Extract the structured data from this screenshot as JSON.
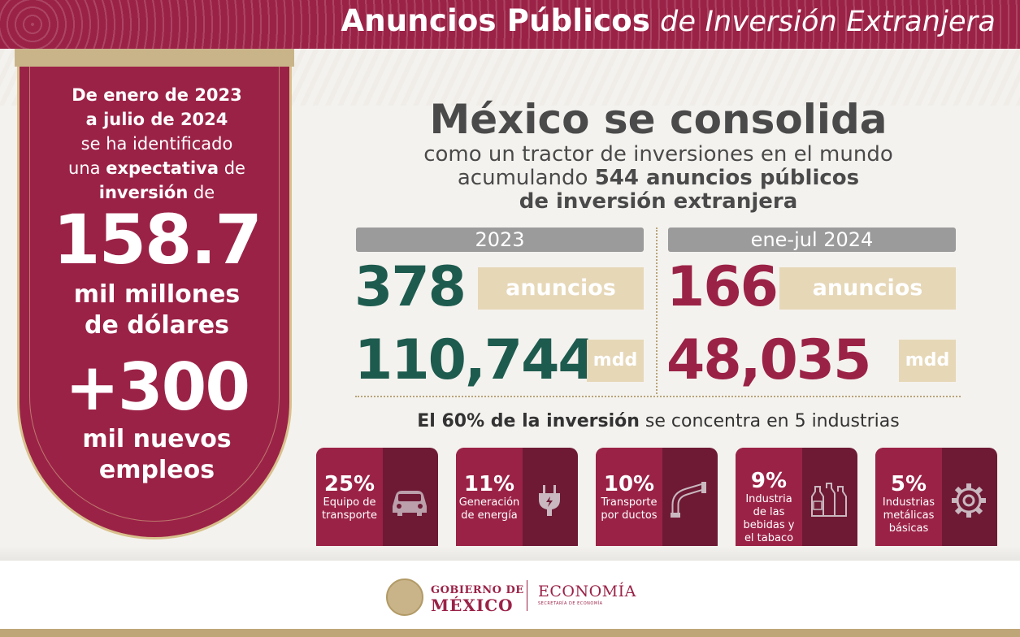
{
  "header": {
    "title_bold": "Anuncios Públicos",
    "title_italic": "de Inversión Extranjera"
  },
  "banner": {
    "line1": "De enero de 2023",
    "line2": "a julio de 2024",
    "line3": "se ha identificado",
    "line4_pre": "una ",
    "line4_bold": "expectativa",
    "line4_post": " de",
    "line5_bold": "inversión",
    "line5_post": " de",
    "investment_value": "158.7",
    "investment_unit_line1": "mil millones",
    "investment_unit_line2": "de dólares",
    "jobs_value": "+300",
    "jobs_line1": "mil nuevos",
    "jobs_line2": "empleos"
  },
  "headline": {
    "title": "México se consolida",
    "line1": "como un tractor de inversiones en el mundo",
    "line2_pre": "acumulando ",
    "line2_bold": "544 anuncios públicos",
    "line3": "de inversión extranjera"
  },
  "period_2023": {
    "label": "2023",
    "announcements": "378",
    "announcements_label": "anuncios",
    "amount": "110,744",
    "amount_unit": "mdd"
  },
  "period_2024": {
    "label": "ene-jul 2024",
    "announcements": "166",
    "announcements_label": "anuncios",
    "amount": "48,035",
    "amount_unit": "mdd"
  },
  "concentration": {
    "bold": "El 60% de la inversión",
    "rest": " se concentra en 5 industrias"
  },
  "industries": [
    {
      "pct": "25%",
      "label_line1": "Equipo de",
      "label_line2": "transporte",
      "label_line3": "",
      "label_line4": "",
      "icon": "car-icon"
    },
    {
      "pct": "11%",
      "label_line1": "Generación",
      "label_line2": "de energía",
      "label_line3": "",
      "label_line4": "",
      "icon": "plug-icon"
    },
    {
      "pct": "10%",
      "label_line1": "Transporte",
      "label_line2": "por ductos",
      "label_line3": "",
      "label_line4": "",
      "icon": "pipe-icon"
    },
    {
      "pct": "9%",
      "label_line1": "Industria",
      "label_line2": "de las",
      "label_line3": "bebidas y",
      "label_line4": "el tabaco",
      "icon": "bottles-icon"
    },
    {
      "pct": "5%",
      "label_line1": "Industrias",
      "label_line2": "metálicas",
      "label_line3": "básicas",
      "label_line4": "",
      "icon": "gear-icon"
    }
  ],
  "footer": {
    "gob_line1": "GOBIERNO DE",
    "gob_line2": "MÉXICO",
    "dept": "ECONOMÍA",
    "dept_sub": "SECRETARÍA DE ECONOMÍA"
  },
  "colors": {
    "maroon": "#9b2247",
    "dark_maroon": "#6e1a35",
    "green": "#1e5b4f",
    "gold": "#c9b48a",
    "beige_tag": "#e6d7b7",
    "gray_bar": "#9b9b9b"
  }
}
